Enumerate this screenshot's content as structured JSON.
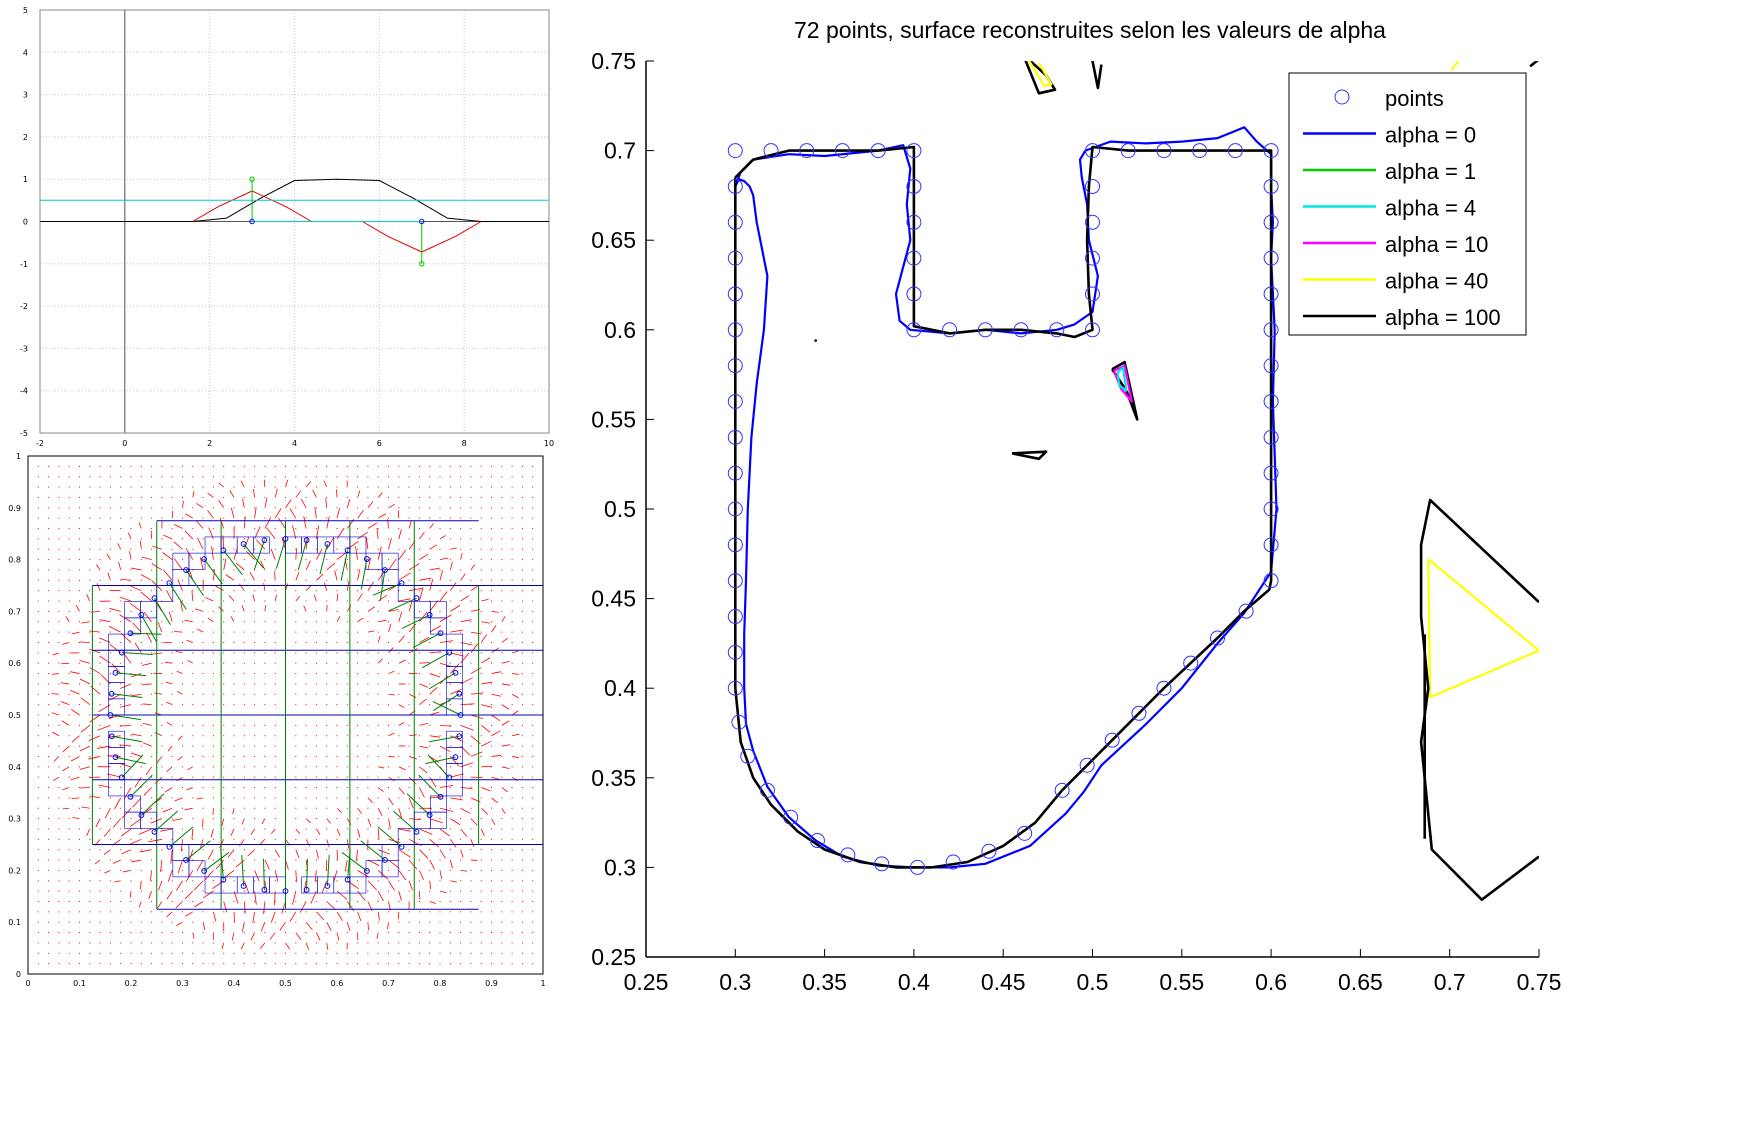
{
  "chart_data": [
    {
      "type": "line",
      "title": "",
      "xlabel": "",
      "ylabel": "",
      "xlim": [
        -2,
        10
      ],
      "ylim": [
        -5,
        5
      ],
      "grid": true,
      "x_ticks": [
        "-2",
        "0",
        "2",
        "4",
        "6",
        "8",
        "10"
      ],
      "y_ticks": [
        "-5",
        "-4",
        "-3",
        "-2",
        "-1",
        "0",
        "1",
        "2",
        "3",
        "4",
        "5"
      ],
      "series": [
        {
          "color": "#000000",
          "x": [
            -2,
            0,
            1.6,
            2.4,
            3.2,
            4,
            5,
            6,
            6.8,
            7.6,
            8.4,
            10
          ],
          "y": [
            0,
            0,
            0,
            0.08,
            0.55,
            0.97,
            1,
            0.97,
            0.55,
            0.08,
            0,
            0
          ]
        },
        {
          "color": "#e00000",
          "x": [
            1.6,
            2.2,
            3,
            3.8,
            4.4,
            5.6,
            6.2,
            7,
            7.8,
            8.4
          ],
          "y": [
            0,
            0.35,
            0.72,
            0.35,
            0,
            0,
            -0.35,
            -0.72,
            -0.35,
            0
          ]
        },
        {
          "color": "#00cccc",
          "x": [
            -2,
            10
          ],
          "y": [
            0.5,
            0.5
          ]
        },
        {
          "color": "#00cccc",
          "x": [
            3,
            7
          ],
          "y": [
            0,
            0
          ]
        }
      ],
      "markers": [
        {
          "color": "#0000ff",
          "x": 3,
          "y": 0
        },
        {
          "color": "#0000ff",
          "x": 7,
          "y": 0
        },
        {
          "color": "#00cc00",
          "x": 3,
          "y": 1
        },
        {
          "color": "#00cc00",
          "x": 7,
          "y": -1
        }
      ],
      "stems": [
        {
          "color": "#00cc00",
          "x": 3,
          "y0": 0,
          "y1": 1
        },
        {
          "color": "#00cc00",
          "x": 7,
          "y0": 0,
          "y1": -1
        }
      ]
    },
    {
      "type": "scatter",
      "title": "",
      "xlabel": "",
      "ylabel": "",
      "xlim": [
        0,
        1
      ],
      "ylim": [
        0,
        1
      ],
      "x_ticks": [
        "0",
        "0.1",
        "0.2",
        "0.3",
        "0.4",
        "0.5",
        "0.6",
        "0.7",
        "0.8",
        "0.9",
        "1"
      ],
      "y_ticks": [
        "0",
        "0.1",
        "0.2",
        "0.3",
        "0.4",
        "0.5",
        "0.6",
        "0.7",
        "0.8",
        "0.9",
        "1"
      ],
      "circle": {
        "cx": 0.5,
        "cy": 0.5,
        "r": 0.34,
        "n": 52,
        "color": "#0000ff"
      },
      "quadtree_h_lines": [
        0.125,
        0.25,
        0.375,
        0.5,
        0.625,
        0.75,
        0.875
      ],
      "quadtree_v_lines": [
        0.125,
        0.25,
        0.375,
        0.5,
        0.625,
        0.75,
        0.875
      ],
      "field_dots_color": "#ff0000",
      "normal_arrows_color": "#008000"
    },
    {
      "type": "line",
      "title": "72 points, surface reconstruites selon les valeurs de alpha",
      "xlabel": "",
      "ylabel": "",
      "xlim": [
        0.25,
        0.75
      ],
      "ylim": [
        0.25,
        0.75
      ],
      "x_ticks": [
        "0.25",
        "0.3",
        "0.35",
        "0.4",
        "0.45",
        "0.5",
        "0.55",
        "0.6",
        "0.65",
        "0.7",
        "0.75"
      ],
      "y_ticks": [
        "0.25",
        "0.3",
        "0.35",
        "0.4",
        "0.45",
        "0.5",
        "0.55",
        "0.6",
        "0.65",
        "0.7",
        "0.75"
      ],
      "legend_position": "top-right",
      "legend": [
        {
          "label": "points",
          "color": "#3333ff",
          "kind": "circle"
        },
        {
          "label": "alpha = 0",
          "color": "#0000ff",
          "kind": "line"
        },
        {
          "label": "alpha = 1",
          "color": "#00cc00",
          "kind": "line"
        },
        {
          "label": "alpha = 4",
          "color": "#00e5e5",
          "kind": "line"
        },
        {
          "label": "alpha = 10",
          "color": "#ff00ff",
          "kind": "line"
        },
        {
          "label": "alpha = 40",
          "color": "#ffff00",
          "kind": "line"
        },
        {
          "label": "alpha = 100",
          "color": "#000000",
          "kind": "line"
        }
      ],
      "points": [
        [
          0.3,
          0.7
        ],
        [
          0.32,
          0.7
        ],
        [
          0.34,
          0.7
        ],
        [
          0.36,
          0.7
        ],
        [
          0.38,
          0.7
        ],
        [
          0.4,
          0.7
        ],
        [
          0.4,
          0.68
        ],
        [
          0.4,
          0.66
        ],
        [
          0.4,
          0.64
        ],
        [
          0.4,
          0.62
        ],
        [
          0.4,
          0.6
        ],
        [
          0.42,
          0.6
        ],
        [
          0.44,
          0.6
        ],
        [
          0.46,
          0.6
        ],
        [
          0.48,
          0.6
        ],
        [
          0.5,
          0.6
        ],
        [
          0.5,
          0.62
        ],
        [
          0.5,
          0.64
        ],
        [
          0.5,
          0.66
        ],
        [
          0.5,
          0.68
        ],
        [
          0.5,
          0.7
        ],
        [
          0.52,
          0.7
        ],
        [
          0.54,
          0.7
        ],
        [
          0.56,
          0.7
        ],
        [
          0.58,
          0.7
        ],
        [
          0.6,
          0.7
        ],
        [
          0.6,
          0.68
        ],
        [
          0.6,
          0.66
        ],
        [
          0.6,
          0.64
        ],
        [
          0.6,
          0.62
        ],
        [
          0.6,
          0.6
        ],
        [
          0.6,
          0.58
        ],
        [
          0.6,
          0.56
        ],
        [
          0.6,
          0.54
        ],
        [
          0.6,
          0.52
        ],
        [
          0.6,
          0.5
        ],
        [
          0.6,
          0.48
        ],
        [
          0.6,
          0.46
        ],
        [
          0.586,
          0.443
        ],
        [
          0.57,
          0.428
        ],
        [
          0.555,
          0.414
        ],
        [
          0.54,
          0.4
        ],
        [
          0.526,
          0.386
        ],
        [
          0.511,
          0.371
        ],
        [
          0.497,
          0.357
        ],
        [
          0.483,
          0.343
        ],
        [
          0.462,
          0.319
        ],
        [
          0.442,
          0.309
        ],
        [
          0.422,
          0.303
        ],
        [
          0.402,
          0.3
        ],
        [
          0.382,
          0.302
        ],
        [
          0.363,
          0.307
        ],
        [
          0.346,
          0.315
        ],
        [
          0.331,
          0.328
        ],
        [
          0.318,
          0.343
        ],
        [
          0.307,
          0.362
        ],
        [
          0.302,
          0.381
        ],
        [
          0.3,
          0.4
        ],
        [
          0.3,
          0.42
        ],
        [
          0.3,
          0.44
        ],
        [
          0.3,
          0.46
        ],
        [
          0.3,
          0.48
        ],
        [
          0.3,
          0.5
        ],
        [
          0.3,
          0.52
        ],
        [
          0.3,
          0.54
        ],
        [
          0.3,
          0.56
        ],
        [
          0.3,
          0.58
        ],
        [
          0.3,
          0.6
        ],
        [
          0.3,
          0.62
        ],
        [
          0.3,
          0.64
        ],
        [
          0.3,
          0.66
        ],
        [
          0.3,
          0.68
        ]
      ],
      "curves": [
        {
          "name": "alpha = 0",
          "color": "#0000ff",
          "x": [
            0.3,
            0.303,
            0.31,
            0.33,
            0.35,
            0.38,
            0.394,
            0.398,
            0.396,
            0.398,
            0.39,
            0.392,
            0.398,
            0.42,
            0.44,
            0.46,
            0.48,
            0.49,
            0.5,
            0.503,
            0.498,
            0.497,
            0.494,
            0.493,
            0.496,
            0.51,
            0.53,
            0.55,
            0.57,
            0.585,
            0.592,
            0.6,
            0.6,
            0.601,
            0.6,
            0.602,
            0.601,
            0.603,
            0.6,
            0.585,
            0.57,
            0.55,
            0.53,
            0.505,
            0.495,
            0.485,
            0.465,
            0.44,
            0.42,
            0.4,
            0.38,
            0.36,
            0.345,
            0.33,
            0.318,
            0.31,
            0.306,
            0.305,
            0.305,
            0.306,
            0.307,
            0.309,
            0.312,
            0.316,
            0.318,
            0.312,
            0.31,
            0.308,
            0.305,
            0.302,
            0.3
          ],
          "y": [
            0.68,
            0.688,
            0.695,
            0.698,
            0.697,
            0.7,
            0.703,
            0.69,
            0.67,
            0.65,
            0.62,
            0.605,
            0.6,
            0.598,
            0.6,
            0.598,
            0.6,
            0.603,
            0.61,
            0.63,
            0.65,
            0.67,
            0.685,
            0.695,
            0.7,
            0.705,
            0.704,
            0.705,
            0.707,
            0.713,
            0.705,
            0.698,
            0.68,
            0.66,
            0.64,
            0.6,
            0.56,
            0.5,
            0.465,
            0.442,
            0.425,
            0.4,
            0.38,
            0.357,
            0.342,
            0.33,
            0.312,
            0.302,
            0.3,
            0.3,
            0.301,
            0.306,
            0.315,
            0.328,
            0.345,
            0.365,
            0.38,
            0.4,
            0.43,
            0.46,
            0.5,
            0.54,
            0.57,
            0.6,
            0.63,
            0.66,
            0.675,
            0.68,
            0.683,
            0.684,
            0.68
          ]
        },
        {
          "name": "alpha = 100",
          "color": "#000000",
          "x": [
            0.3,
            0.31,
            0.33,
            0.35,
            0.38,
            0.4,
            0.4,
            0.4,
            0.4,
            0.4,
            0.42,
            0.44,
            0.46,
            0.48,
            0.49,
            0.5,
            0.498,
            0.497,
            0.498,
            0.5,
            0.52,
            0.54,
            0.56,
            0.58,
            0.6,
            0.6,
            0.6,
            0.6,
            0.6,
            0.6,
            0.6,
            0.599,
            0.585,
            0.57,
            0.555,
            0.54,
            0.526,
            0.511,
            0.497,
            0.483,
            0.468,
            0.45,
            0.43,
            0.41,
            0.39,
            0.37,
            0.35,
            0.335,
            0.32,
            0.31,
            0.303,
            0.3,
            0.3,
            0.3,
            0.3,
            0.3,
            0.3,
            0.3,
            0.3,
            0.3
          ],
          "y": [
            0.685,
            0.695,
            0.7,
            0.7,
            0.7,
            0.702,
            0.68,
            0.65,
            0.62,
            0.602,
            0.598,
            0.6,
            0.6,
            0.598,
            0.596,
            0.6,
            0.62,
            0.65,
            0.68,
            0.702,
            0.7,
            0.7,
            0.7,
            0.7,
            0.7,
            0.68,
            0.65,
            0.6,
            0.55,
            0.5,
            0.46,
            0.455,
            0.443,
            0.428,
            0.414,
            0.4,
            0.386,
            0.371,
            0.357,
            0.343,
            0.325,
            0.312,
            0.303,
            0.3,
            0.3,
            0.303,
            0.31,
            0.32,
            0.335,
            0.35,
            0.37,
            0.4,
            0.43,
            0.46,
            0.5,
            0.54,
            0.58,
            0.62,
            0.66,
            0.685
          ]
        },
        {
          "name": "alpha = 40",
          "color": "#ffff00",
          "x": [
            0.688,
            0.75,
            0.689,
            0.688
          ],
          "y": [
            0.472,
            0.421,
            0.395,
            0.472
          ]
        },
        {
          "name": "alpha = 100",
          "color": "#000000",
          "x": [
            0.75,
            0.689,
            0.684,
            0.684,
            0.688,
            0.684,
            0.69,
            0.718,
            0.75
          ],
          "y": [
            0.448,
            0.505,
            0.48,
            0.44,
            0.4,
            0.37,
            0.31,
            0.282,
            0.306
          ]
        },
        {
          "name": "alpha = 100",
          "color": "#000000",
          "x": [
            0.686,
            0.686
          ],
          "y": [
            0.43,
            0.316
          ]
        },
        {
          "name": "alpha = 100",
          "color": "#000000",
          "x": [
            0.511,
            0.518,
            0.525,
            0.519,
            0.511
          ],
          "y": [
            0.578,
            0.582,
            0.55,
            0.566,
            0.578
          ]
        },
        {
          "name": "alpha = 10",
          "color": "#ff00ff",
          "x": [
            0.512,
            0.518,
            0.522,
            0.516,
            0.512
          ],
          "y": [
            0.577,
            0.58,
            0.56,
            0.567,
            0.577
          ]
        },
        {
          "name": "alpha = 4",
          "color": "#00e5e5",
          "x": [
            0.514,
            0.517,
            0.519,
            0.515,
            0.514
          ],
          "y": [
            0.576,
            0.579,
            0.566,
            0.569,
            0.576
          ]
        },
        {
          "name": "alpha = 100",
          "color": "#000000",
          "x": [
            0.455,
            0.474,
            0.47,
            0.455
          ],
          "y": [
            0.531,
            0.532,
            0.528,
            0.531
          ]
        },
        {
          "name": "alpha = 100",
          "color": "#000000",
          "x": [
            0.461,
            0.47,
            0.479,
            0.474,
            0.463,
            0.461
          ],
          "y": [
            0.754,
            0.732,
            0.734,
            0.742,
            0.752,
            0.754
          ]
        },
        {
          "name": "alpha = 40",
          "color": "#ffff00",
          "x": [
            0.464,
            0.473,
            0.477,
            0.47
          ],
          "y": [
            0.751,
            0.736,
            0.737,
            0.749
          ]
        },
        {
          "name": "alpha = 100",
          "color": "#000000",
          "x": [
            0.5,
            0.503,
            0.505
          ],
          "y": [
            0.75,
            0.735,
            0.748
          ]
        },
        {
          "name": "alpha = 100",
          "color": "#000000",
          "x": [
            0.745,
            0.75
          ],
          "y": [
            0.747,
            0.751
          ]
        },
        {
          "name": "alpha = 40",
          "color": "#ffff00",
          "x": [
            0.701,
            0.705
          ],
          "y": [
            0.745,
            0.75
          ]
        }
      ],
      "stray_points": [
        [
          0.345,
          0.594
        ]
      ]
    }
  ]
}
